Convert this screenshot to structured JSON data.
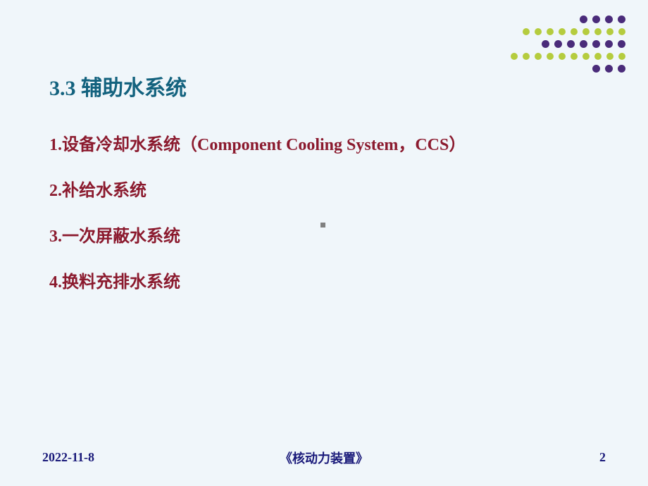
{
  "decoration": {
    "rows": [
      {
        "dots": [
          {
            "color": "#4a2b7a",
            "size": 11
          },
          {
            "color": "#4a2b7a",
            "size": 11
          },
          {
            "color": "#4a2b7a",
            "size": 11
          },
          {
            "color": "#4a2b7a",
            "size": 11
          }
        ]
      },
      {
        "dots": [
          {
            "color": "#b5cc3e",
            "size": 10
          },
          {
            "color": "#b5cc3e",
            "size": 10
          },
          {
            "color": "#b5cc3e",
            "size": 10
          },
          {
            "color": "#b5cc3e",
            "size": 10
          },
          {
            "color": "#b5cc3e",
            "size": 10
          },
          {
            "color": "#b5cc3e",
            "size": 10
          },
          {
            "color": "#b5cc3e",
            "size": 10
          },
          {
            "color": "#b5cc3e",
            "size": 10
          },
          {
            "color": "#b5cc3e",
            "size": 10
          }
        ]
      },
      {
        "dots": [
          {
            "color": "#4a2b7a",
            "size": 11
          },
          {
            "color": "#4a2b7a",
            "size": 11
          },
          {
            "color": "#4a2b7a",
            "size": 11
          },
          {
            "color": "#4a2b7a",
            "size": 11
          },
          {
            "color": "#4a2b7a",
            "size": 11
          },
          {
            "color": "#4a2b7a",
            "size": 11
          },
          {
            "color": "#4a2b7a",
            "size": 11
          }
        ]
      },
      {
        "dots": [
          {
            "color": "#b5cc3e",
            "size": 10
          },
          {
            "color": "#b5cc3e",
            "size": 10
          },
          {
            "color": "#b5cc3e",
            "size": 10
          },
          {
            "color": "#b5cc3e",
            "size": 10
          },
          {
            "color": "#b5cc3e",
            "size": 10
          },
          {
            "color": "#b5cc3e",
            "size": 10
          },
          {
            "color": "#b5cc3e",
            "size": 10
          },
          {
            "color": "#b5cc3e",
            "size": 10
          },
          {
            "color": "#b5cc3e",
            "size": 10
          },
          {
            "color": "#b5cc3e",
            "size": 10
          }
        ]
      },
      {
        "dots": [
          {
            "color": "#4a2b7a",
            "size": 11
          },
          {
            "color": "#4a2b7a",
            "size": 11
          },
          {
            "color": "#4a2b7a",
            "size": 11
          }
        ]
      }
    ]
  },
  "section": {
    "title": "3.3  辅助水系统"
  },
  "content": {
    "items": [
      "1.设备冷却水系统（Component Cooling System，CCS）",
      "2.补给水系统",
      "3.一次屏蔽水系统",
      "4.换料充排水系统"
    ]
  },
  "footer": {
    "date": "2022-11-8",
    "title": "《核动力装置》",
    "page": "2"
  },
  "colors": {
    "background": "#f0f6fa",
    "title_color": "#13627e",
    "item_color": "#8b1a2e",
    "footer_color": "#1a1a7a"
  }
}
